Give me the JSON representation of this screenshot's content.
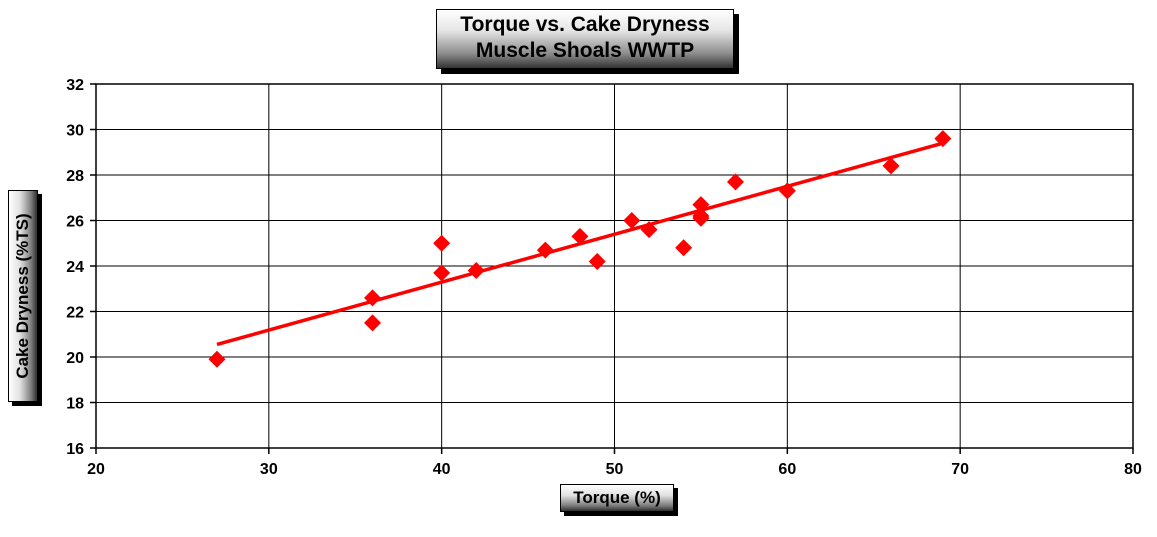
{
  "chart_data": {
    "type": "scatter",
    "title": "Torque vs. Cake Dryness",
    "subtitle": "Muscle Shoals WWTP",
    "xlabel": "Torque (%)",
    "ylabel": "Cake Dryness (%TS)",
    "xlim": [
      20,
      80
    ],
    "ylim": [
      16,
      32
    ],
    "xticks": [
      20,
      30,
      40,
      50,
      60,
      70,
      80
    ],
    "yticks": [
      16,
      18,
      20,
      22,
      24,
      26,
      28,
      30,
      32
    ],
    "grid": true,
    "series": [
      {
        "marker": "diamond",
        "color": "#ff0000",
        "x": [
          27,
          36,
          36,
          40,
          40,
          42,
          46,
          48,
          49,
          51,
          52,
          54,
          55,
          55,
          55,
          57,
          60,
          66,
          69
        ],
        "y": [
          19.9,
          22.6,
          21.5,
          25.0,
          23.7,
          23.8,
          24.7,
          25.3,
          24.2,
          26.0,
          25.6,
          24.8,
          26.7,
          26.1,
          26.2,
          27.7,
          27.3,
          28.4,
          29.6
        ]
      }
    ],
    "trendline": {
      "color": "#ff0000",
      "x": [
        27,
        69
      ],
      "y": [
        20.55,
        29.4
      ]
    }
  }
}
